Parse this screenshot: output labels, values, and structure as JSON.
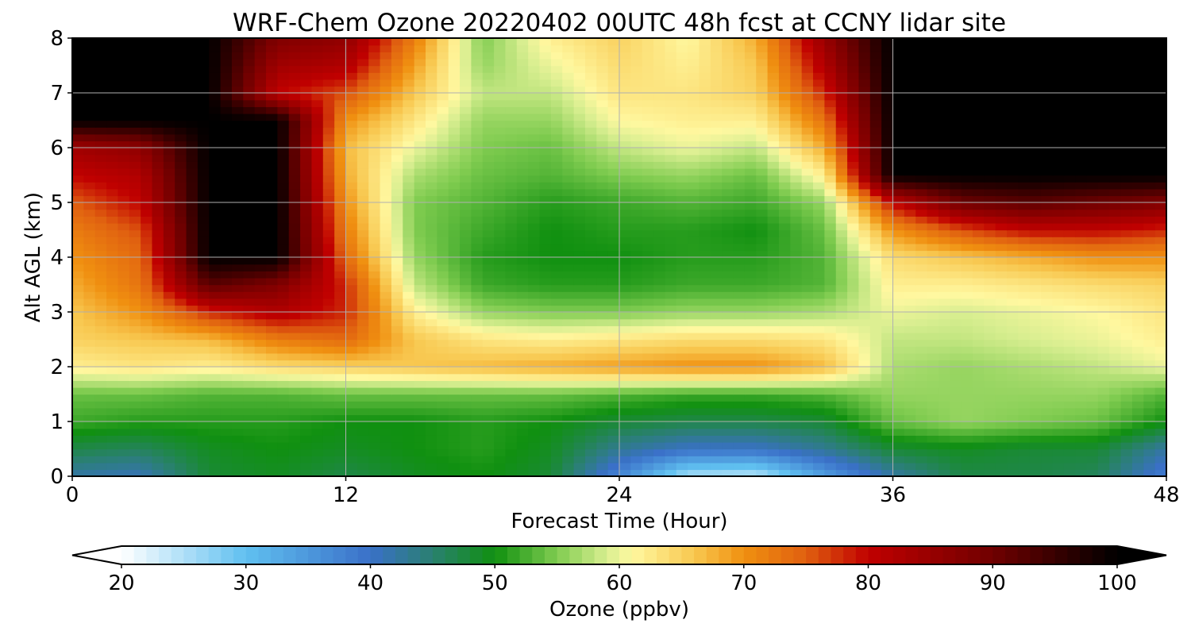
{
  "chart_data": {
    "type": "heatmap",
    "title": "WRF-Chem Ozone  20220402 00UTC 48h fcst at CCNY lidar site",
    "xlabel": "Forecast Time (Hour)",
    "ylabel": "Alt AGL (km)",
    "xlim": [
      0,
      48
    ],
    "ylim": [
      0,
      8
    ],
    "xticks": [
      0,
      12,
      24,
      36,
      48
    ],
    "yticks": [
      0,
      1,
      2,
      3,
      4,
      5,
      6,
      7,
      8
    ],
    "grid": true,
    "x": [
      0,
      3,
      6,
      9,
      12,
      15,
      18,
      21,
      24,
      27,
      30,
      33,
      36,
      39,
      42,
      45,
      48
    ],
    "y": [
      0,
      0.5,
      1,
      1.5,
      2,
      2.5,
      3,
      3.5,
      4,
      4.5,
      5,
      5.5,
      6,
      6.5,
      7,
      7.5,
      8
    ],
    "z": [
      [
        42,
        41,
        48,
        49,
        47,
        49,
        50,
        48,
        37,
        25,
        24,
        34,
        42,
        47,
        47,
        46,
        38
      ],
      [
        47,
        46,
        49,
        50,
        49,
        50,
        51,
        49,
        43,
        40,
        40,
        43,
        48,
        49,
        48,
        48,
        42
      ],
      [
        52,
        51,
        51,
        51,
        50,
        50,
        51,
        50,
        48,
        47,
        47,
        48,
        54,
        56,
        55,
        54,
        50
      ],
      [
        54,
        54,
        53,
        53,
        54,
        54,
        54,
        54,
        53,
        52,
        52,
        53,
        56,
        56,
        56,
        56,
        53
      ],
      [
        62,
        63,
        62,
        64,
        65,
        66,
        67,
        68,
        69,
        70,
        70,
        67,
        57,
        56,
        57,
        58,
        60
      ],
      [
        65,
        66,
        67,
        72,
        74,
        66,
        63,
        62,
        63,
        64,
        64,
        63,
        58,
        58,
        59,
        60,
        62
      ],
      [
        66,
        70,
        78,
        82,
        78,
        62,
        56,
        55,
        55,
        56,
        56,
        57,
        60,
        59,
        60,
        61,
        63
      ],
      [
        68,
        73,
        92,
        88,
        78,
        58,
        52,
        51,
        51,
        52,
        52,
        53,
        62,
        62,
        63,
        64,
        65
      ],
      [
        70,
        74,
        100,
        100,
        74,
        56,
        51,
        50,
        50,
        51,
        51,
        53,
        64,
        66,
        68,
        70,
        70
      ],
      [
        72,
        76,
        100,
        100,
        72,
        55,
        52,
        50,
        51,
        51,
        50,
        54,
        70,
        76,
        80,
        80,
        78
      ],
      [
        75,
        80,
        100,
        100,
        70,
        55,
        53,
        51,
        52,
        53,
        52,
        56,
        80,
        90,
        92,
        90,
        88
      ],
      [
        80,
        82,
        100,
        100,
        68,
        57,
        54,
        53,
        55,
        56,
        54,
        62,
        100,
        100,
        100,
        100,
        100
      ],
      [
        84,
        86,
        100,
        100,
        67,
        60,
        55,
        54,
        58,
        60,
        58,
        68,
        100,
        100,
        100,
        100,
        100
      ],
      [
        100,
        100,
        100,
        100,
        70,
        63,
        56,
        56,
        61,
        62,
        62,
        73,
        100,
        100,
        100,
        100,
        100
      ],
      [
        100,
        100,
        100,
        80,
        76,
        66,
        58,
        58,
        63,
        63,
        65,
        78,
        100,
        100,
        100,
        100,
        100
      ],
      [
        100,
        100,
        100,
        84,
        82,
        69,
        56,
        60,
        64,
        62,
        66,
        82,
        100,
        100,
        100,
        100,
        100
      ],
      [
        100,
        100,
        100,
        88,
        86,
        72,
        55,
        62,
        65,
        61,
        68,
        85,
        100,
        100,
        100,
        100,
        100
      ]
    ],
    "colorbar": {
      "label": "Ozone  (ppbv)",
      "ticks": [
        20,
        30,
        40,
        50,
        60,
        70,
        80,
        90,
        100
      ],
      "range": [
        20,
        100
      ],
      "extend": "both",
      "orientation": "horizontal",
      "position": "bottom"
    },
    "colors": {
      "stops": [
        [
          20,
          "#ffffff"
        ],
        [
          30,
          "#60c0f0"
        ],
        [
          40,
          "#3a70c8"
        ],
        [
          45,
          "#2a8070"
        ],
        [
          50,
          "#109010"
        ],
        [
          55,
          "#80cc50"
        ],
        [
          59,
          "#d8ee90"
        ],
        [
          61,
          "#fff8a0"
        ],
        [
          66,
          "#f8c850"
        ],
        [
          70,
          "#f09010"
        ],
        [
          75,
          "#e06010"
        ],
        [
          80,
          "#c00000"
        ],
        [
          90,
          "#700000"
        ],
        [
          100,
          "#000000"
        ]
      ],
      "grid_line": "#b0b0b0",
      "frame": "#000000"
    }
  }
}
